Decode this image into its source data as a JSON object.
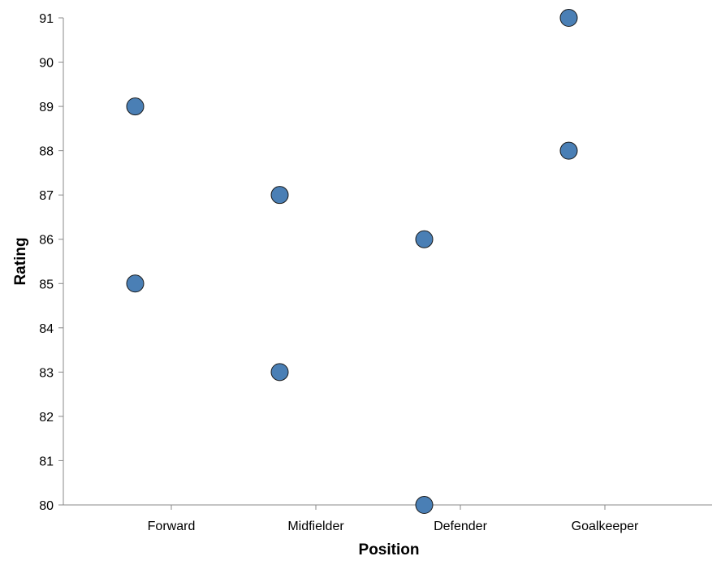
{
  "chart_data": {
    "type": "scatter",
    "title": "",
    "xlabel": "Position",
    "ylabel": "Rating",
    "categories": [
      "Forward",
      "Midfielder",
      "Defender",
      "Goalkeeper"
    ],
    "points": [
      {
        "category": "Forward",
        "value": 89,
        "offset": -0.25
      },
      {
        "category": "Forward",
        "value": 85,
        "offset": -0.25
      },
      {
        "category": "Midfielder",
        "value": 87,
        "offset": -0.25
      },
      {
        "category": "Midfielder",
        "value": 83,
        "offset": -0.25
      },
      {
        "category": "Defender",
        "value": 86,
        "offset": -0.25
      },
      {
        "category": "Defender",
        "value": 80,
        "offset": -0.25
      },
      {
        "category": "Goalkeeper",
        "value": 91,
        "offset": -0.25
      },
      {
        "category": "Goalkeeper",
        "value": 88,
        "offset": -0.25
      }
    ],
    "ylim": [
      80,
      91
    ],
    "yticks": [
      80,
      81,
      82,
      83,
      84,
      85,
      86,
      87,
      88,
      89,
      90,
      91
    ],
    "grid": false,
    "colors": {
      "marker_fill": "#4a7fb5",
      "marker_stroke": "#1a1a1a",
      "axis": "#888888"
    }
  }
}
